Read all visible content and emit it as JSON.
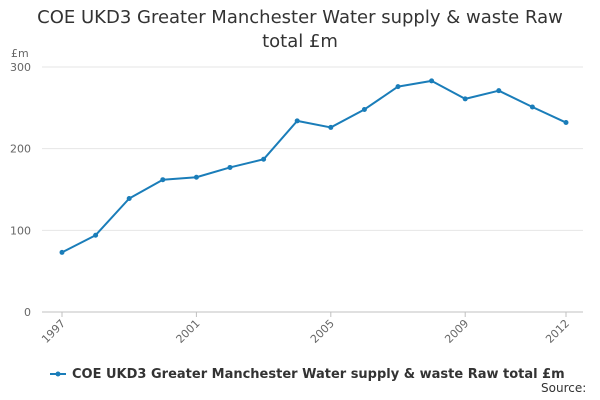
{
  "chart_data": {
    "type": "line",
    "title_lines": [
      "COE UKD3 Greater Manchester Water supply & waste Raw",
      "total £m"
    ],
    "ylabel": "£m",
    "xlabel": "",
    "x": [
      1997,
      1998,
      1999,
      2000,
      2001,
      2002,
      2003,
      2004,
      2005,
      2006,
      2007,
      2008,
      2009,
      2010,
      2011,
      2012
    ],
    "series": [
      {
        "name": "COE UKD3 Greater Manchester Water supply & waste Raw total £m",
        "values": [
          73,
          94,
          139,
          162,
          165,
          177,
          187,
          234,
          226,
          248,
          276,
          283,
          261,
          271,
          251,
          232
        ]
      }
    ],
    "xtick_labels": [
      "1997",
      "2001",
      "2005",
      "2009",
      "2012"
    ],
    "ytick_labels": [
      "0",
      "100",
      "200",
      "300"
    ],
    "ylim": [
      0,
      300
    ],
    "grid": true,
    "legend": "bottom-left",
    "color": "#1a7db9"
  },
  "source_label": "Source:"
}
